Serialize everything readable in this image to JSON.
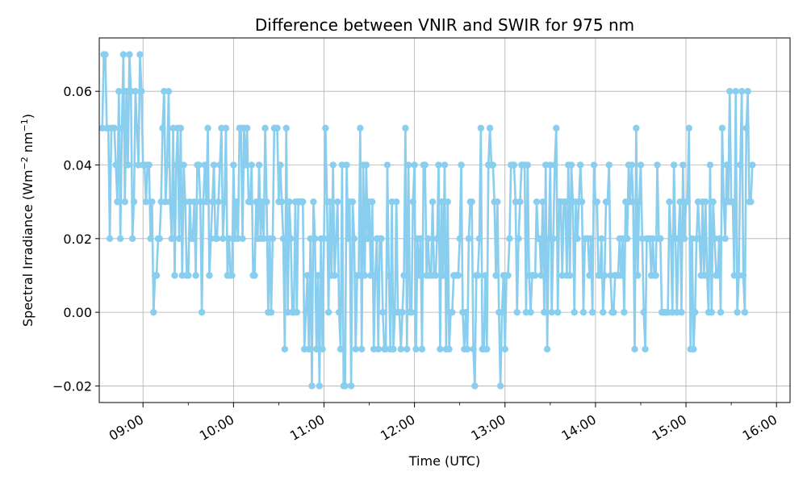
{
  "chart_data": {
    "type": "line",
    "title": "Difference between VNIR and SWIR for 975 nm",
    "xlabel": "Time (UTC)",
    "ylabel_parts": [
      "Spectral Irradiance (W",
      "m",
      "−2",
      " nm",
      "−1",
      ")"
    ],
    "x_ticks": [
      "09:00",
      "10:00",
      "11:00",
      "12:00",
      "13:00",
      "14:00",
      "15:00",
      "16:00"
    ],
    "y_ticks": [
      "−0.02",
      "0.00",
      "0.02",
      "0.04",
      "0.06"
    ],
    "xlim": [
      "08:31",
      "16:09"
    ],
    "ylim": [
      -0.0245,
      0.0745
    ],
    "grid": true,
    "series": [
      {
        "color": "#89ceee",
        "marker": "circle",
        "x_start": "08:33",
        "x_end": "15:44",
        "sample_minutes": 1,
        "segments": [
          {
            "start": "08:33",
            "end": "09:00",
            "range": [
              0.01,
              0.07
            ]
          },
          {
            "start": "09:00",
            "end": "10:30",
            "range": [
              0.0,
              0.06
            ]
          },
          {
            "start": "10:30",
            "end": "13:00",
            "range": [
              -0.02,
              0.05
            ]
          },
          {
            "start": "13:00",
            "end": "15:20",
            "range": [
              -0.01,
              0.05
            ]
          },
          {
            "start": "15:20",
            "end": "15:44",
            "range": [
              -0.01,
              0.06
            ]
          }
        ],
        "highlights": [
          {
            "x": "08:34",
            "y": 0.07
          },
          {
            "x": "08:35",
            "y": 0.07
          },
          {
            "x": "08:47",
            "y": 0.07
          },
          {
            "x": "08:51",
            "y": 0.07
          },
          {
            "x": "08:58",
            "y": 0.07
          },
          {
            "x": "09:17",
            "y": 0.06
          },
          {
            "x": "10:57",
            "y": -0.02
          },
          {
            "x": "11:14",
            "y": -0.02
          },
          {
            "x": "11:18",
            "y": -0.02
          },
          {
            "x": "12:57",
            "y": -0.02
          },
          {
            "x": "12:50",
            "y": 0.05
          },
          {
            "x": "15:29",
            "y": 0.06
          },
          {
            "x": "15:33",
            "y": 0.06
          },
          {
            "x": "15:37",
            "y": 0.06
          },
          {
            "x": "15:41",
            "y": 0.06
          }
        ]
      }
    ]
  }
}
